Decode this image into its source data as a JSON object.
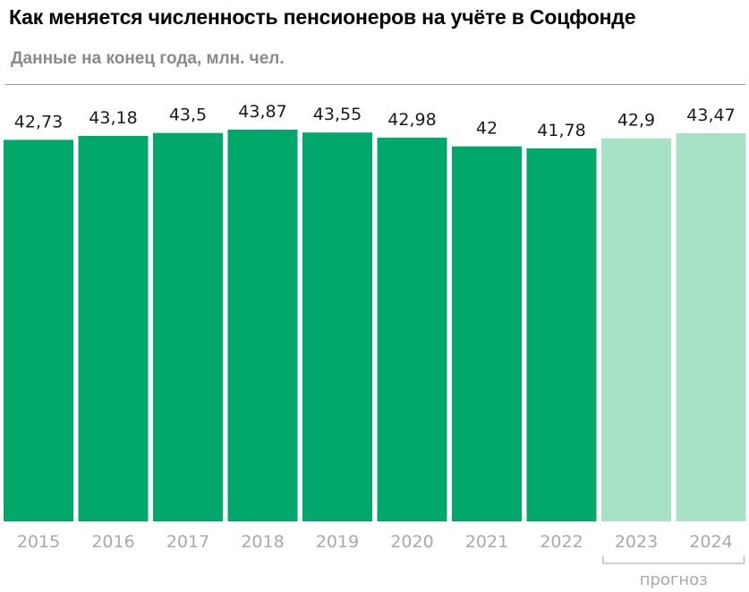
{
  "header": {
    "title": "Как меняется численность пенсионеров на учёте в Соцфонде",
    "subtitle": "Данные на конец года, млн. чел."
  },
  "colors": {
    "actual": "#00a86b",
    "forecast": "#a8e2c6",
    "year_label": "#a9a9a9",
    "value_label": "#1a1a1a"
  },
  "chart_data": {
    "type": "bar",
    "title": "Как меняется численность пенсионеров на учёте в Соцфонде",
    "subtitle": "Данные на конец года, млн. чел.",
    "categories": [
      "2015",
      "2016",
      "2017",
      "2018",
      "2019",
      "2020",
      "2021",
      "2022",
      "2023",
      "2024"
    ],
    "values": [
      42.73,
      43.18,
      43.5,
      43.87,
      43.55,
      42.98,
      42,
      41.78,
      42.9,
      43.47
    ],
    "value_labels": [
      "42,73",
      "43,18",
      "43,5",
      "43,87",
      "43,55",
      "42,98",
      "42",
      "41,78",
      "42,9",
      "43,47"
    ],
    "forecast_categories": [
      "2023",
      "2024"
    ],
    "forecast_label": "прогноз",
    "ylim": [
      0,
      43.87
    ],
    "grid": false,
    "legend": "none"
  }
}
